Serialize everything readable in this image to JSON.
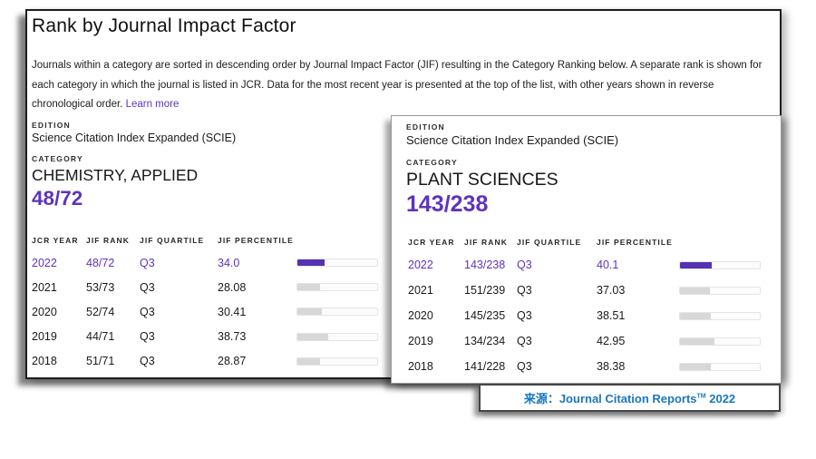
{
  "header": {
    "title": "Rank by Journal Impact Factor",
    "description": "Journals within a category are sorted in descending order by Journal Impact Factor (JIF) resulting in the Category Ranking below. A separate rank is shown for each category in which the journal is listed in JCR. Data for the most recent year is presented at the top of the list, with other years shown in reverse chronological order.",
    "learn_more_label": "Learn more"
  },
  "panels": [
    {
      "edition_label": "EDITION",
      "edition": "Science Citation Index Expanded (SCIE)",
      "category_label": "CATEGORY",
      "category": "CHEMISTRY, APPLIED",
      "rank": "48/72",
      "table": {
        "headers": [
          "JCR YEAR",
          "JIF RANK",
          "JIF QUARTILE",
          "JIF PERCENTILE"
        ],
        "rows": [
          {
            "year": "2022",
            "rank": "48/72",
            "quartile": "Q3",
            "percentile": "34.0",
            "percentile_value": 34.0,
            "highlighted": true
          },
          {
            "year": "2021",
            "rank": "53/73",
            "quartile": "Q3",
            "percentile": "28.08",
            "percentile_value": 28.08,
            "highlighted": false
          },
          {
            "year": "2020",
            "rank": "52/74",
            "quartile": "Q3",
            "percentile": "30.41",
            "percentile_value": 30.41,
            "highlighted": false
          },
          {
            "year": "2019",
            "rank": "44/71",
            "quartile": "Q3",
            "percentile": "38.73",
            "percentile_value": 38.73,
            "highlighted": false
          },
          {
            "year": "2018",
            "rank": "51/71",
            "quartile": "Q3",
            "percentile": "28.87",
            "percentile_value": 28.87,
            "highlighted": false
          }
        ]
      }
    },
    {
      "edition_label": "EDITION",
      "edition": "Science Citation Index Expanded (SCIE)",
      "category_label": "CATEGORY",
      "category": "PLANT SCIENCES",
      "rank": "143/238",
      "table": {
        "headers": [
          "JCR YEAR",
          "JIF RANK",
          "JIF QUARTILE",
          "JIF PERCENTILE"
        ],
        "rows": [
          {
            "year": "2022",
            "rank": "143/238",
            "quartile": "Q3",
            "percentile": "40.1",
            "percentile_value": 40.1,
            "highlighted": true
          },
          {
            "year": "2021",
            "rank": "151/239",
            "quartile": "Q3",
            "percentile": "37.03",
            "percentile_value": 37.03,
            "highlighted": false
          },
          {
            "year": "2020",
            "rank": "145/235",
            "quartile": "Q3",
            "percentile": "38.51",
            "percentile_value": 38.51,
            "highlighted": false
          },
          {
            "year": "2019",
            "rank": "134/234",
            "quartile": "Q3",
            "percentile": "42.95",
            "percentile_value": 42.95,
            "highlighted": false
          },
          {
            "year": "2018",
            "rank": "141/228",
            "quartile": "Q3",
            "percentile": "38.38",
            "percentile_value": 38.38,
            "highlighted": false
          }
        ]
      }
    }
  ],
  "source": {
    "prefix": "来源：",
    "name": "Journal Citation Reports",
    "trademark": "TM",
    "year": " 2022"
  },
  "colors": {
    "accent_purple": "#5e33bf",
    "bar_fill_purple": "#5431b6",
    "bar_fill_gray": "#d8d8d8",
    "source_blue": "#1877c0"
  }
}
